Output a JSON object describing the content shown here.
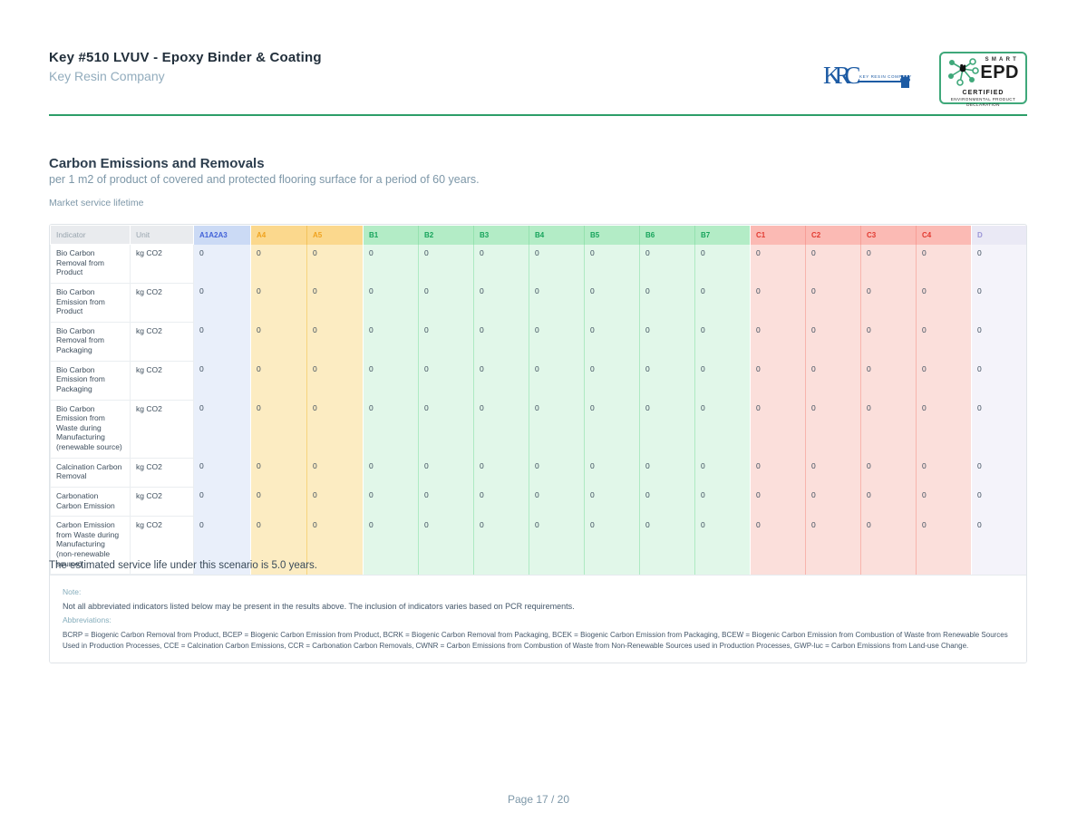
{
  "header": {
    "title": "Key #510 LVUV - Epoxy Binder & Coating",
    "company": "Key Resin Company",
    "krc_logo": {
      "monogram": "KRC",
      "company": "Key Resin Company",
      "brand_color": "#1d5ba4"
    },
    "epd_badge": {
      "smart": "SMART",
      "name": "EPD",
      "certified": "CERTIFIED",
      "line1": "ENVIRONMENTAL PRODUCT",
      "line2": "DECLARATION",
      "border_color": "#3fa87a"
    }
  },
  "section": {
    "title": "Carbon Emissions and Removals",
    "subtitle": "per 1 m2 of product of covered and protected flooring surface for a period of 60 years.",
    "scenario_label": "Market service lifetime"
  },
  "table": {
    "indicator_header": "Indicator",
    "unit_header": "Unit",
    "stage_columns": [
      {
        "label": "A1A2A3",
        "group": "a1"
      },
      {
        "label": "A4",
        "group": "a"
      },
      {
        "label": "A5",
        "group": "a"
      },
      {
        "label": "B1",
        "group": "b"
      },
      {
        "label": "B2",
        "group": "b"
      },
      {
        "label": "B3",
        "group": "b"
      },
      {
        "label": "B4",
        "group": "b"
      },
      {
        "label": "B5",
        "group": "b"
      },
      {
        "label": "B6",
        "group": "b"
      },
      {
        "label": "B7",
        "group": "b"
      },
      {
        "label": "C1",
        "group": "c"
      },
      {
        "label": "C2",
        "group": "c"
      },
      {
        "label": "C3",
        "group": "c"
      },
      {
        "label": "C4",
        "group": "c"
      },
      {
        "label": "D",
        "group": "d"
      }
    ],
    "rows": [
      {
        "indicator": "Bio Carbon Removal from Product",
        "unit": "kg CO2",
        "values": [
          "0",
          "0",
          "0",
          "0",
          "0",
          "0",
          "0",
          "0",
          "0",
          "0",
          "0",
          "0",
          "0",
          "0",
          "0"
        ]
      },
      {
        "indicator": "Bio Carbon Emission from Product",
        "unit": "kg CO2",
        "values": [
          "0",
          "0",
          "0",
          "0",
          "0",
          "0",
          "0",
          "0",
          "0",
          "0",
          "0",
          "0",
          "0",
          "0",
          "0"
        ]
      },
      {
        "indicator": "Bio Carbon Removal from Packaging",
        "unit": "kg CO2",
        "values": [
          "0",
          "0",
          "0",
          "0",
          "0",
          "0",
          "0",
          "0",
          "0",
          "0",
          "0",
          "0",
          "0",
          "0",
          "0"
        ]
      },
      {
        "indicator": "Bio Carbon Emission from Packaging",
        "unit": "kg CO2",
        "values": [
          "0",
          "0",
          "0",
          "0",
          "0",
          "0",
          "0",
          "0",
          "0",
          "0",
          "0",
          "0",
          "0",
          "0",
          "0"
        ]
      },
      {
        "indicator": "Bio Carbon Emission from Waste during Manufacturing (renewable source)",
        "unit": "kg CO2",
        "values": [
          "0",
          "0",
          "0",
          "0",
          "0",
          "0",
          "0",
          "0",
          "0",
          "0",
          "0",
          "0",
          "0",
          "0",
          "0"
        ]
      },
      {
        "indicator": "Calcination Carbon Removal",
        "unit": "kg CO2",
        "values": [
          "0",
          "0",
          "0",
          "0",
          "0",
          "0",
          "0",
          "0",
          "0",
          "0",
          "0",
          "0",
          "0",
          "0",
          "0"
        ]
      },
      {
        "indicator": "Carbonation Carbon Emission",
        "unit": "kg CO2",
        "values": [
          "0",
          "0",
          "0",
          "0",
          "0",
          "0",
          "0",
          "0",
          "0",
          "0",
          "0",
          "0",
          "0",
          "0",
          "0"
        ]
      },
      {
        "indicator": "Carbon Emission from Waste during Manufacturing (non-renewable source)",
        "unit": "kg CO2",
        "values": [
          "0",
          "0",
          "0",
          "0",
          "0",
          "0",
          "0",
          "0",
          "0",
          "0",
          "0",
          "0",
          "0",
          "0",
          "0"
        ]
      }
    ]
  },
  "notes": {
    "note_label": "Note:",
    "note_text": "Not all abbreviated indicators listed below may be present in the results above. The inclusion of indicators varies based on PCR requirements.",
    "abbr_label": "Abbreviations:",
    "abbr_text": "BCRP = Biogenic Carbon Removal from Product, BCEP = Biogenic Carbon Emission from Product, BCRK = Biogenic Carbon Removal from Packaging, BCEK = Biogenic Carbon Emission from Packaging, BCEW = Biogenic Carbon Emission from Combustion of Waste from Renewable Sources Used in Production Processes, CCE = Calcination Carbon Emissions, CCR = Carbonation Carbon Removals, CWNR = Carbon Emissions from Combustion of Waste from Non-Renewable Sources used in Production Processes, GWP-luc = Carbon Emissions from Land-use Change."
  },
  "service_life_text": "The estimated service life under this scenario is 5.0 years.",
  "footer": {
    "page_label": "Page 17 / 20"
  },
  "palette": {
    "accent_rule_green": "#2d9e68",
    "brand_blue": "#1d5ba4",
    "stage_blue_text": "#4262d8",
    "stage_amber_text": "#f0a21e",
    "stage_green_text": "#17a45b",
    "stage_red_text": "#e23a31",
    "stage_purple_text": "#9b95d7",
    "muted_text": "#7d97a8",
    "dark_text": "#222f3b"
  }
}
